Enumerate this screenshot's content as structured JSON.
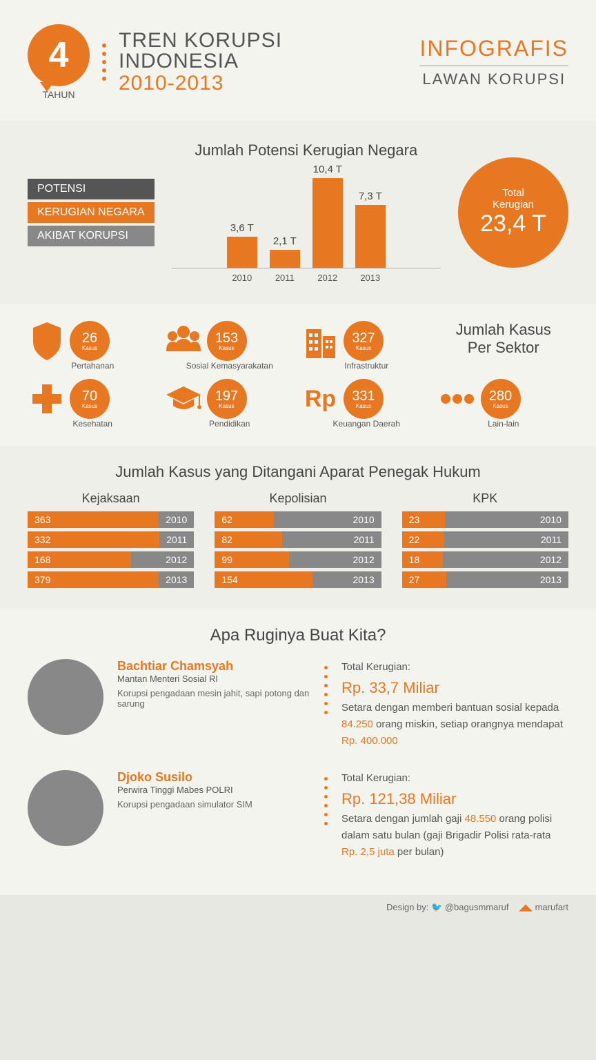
{
  "header": {
    "badge_number": "4",
    "badge_label": "TAHUN",
    "title_line1": "TREN KORUPSI",
    "title_line2": "INDONESIA",
    "title_years": "2010-2013",
    "right_line1": "INFOGRAFIS",
    "right_line2": "LAWAN KORUPSI"
  },
  "colors": {
    "orange": "#e87722",
    "dark_gray": "#555555",
    "gray": "#888888",
    "bg_light": "#f4f4ef",
    "bg_alt": "#efefe9"
  },
  "section1": {
    "label1": "POTENSI",
    "label2": "KERUGIAN NEGARA",
    "label3": "AKIBAT KORUPSI",
    "chart_title": "Jumlah Potensi Kerugian Negara",
    "bars": [
      {
        "year": "2010",
        "label": "3,6 T",
        "value": 3.6
      },
      {
        "year": "2011",
        "label": "2,1 T",
        "value": 2.1
      },
      {
        "year": "2012",
        "label": "10,4 T",
        "value": 10.4
      },
      {
        "year": "2013",
        "label": "7,3 T",
        "value": 7.3
      }
    ],
    "max_value": 10.4,
    "bar_max_height": 130,
    "total_label1": "Total",
    "total_label2": "Kerugian",
    "total_value": "23,4 T"
  },
  "section2": {
    "title": "Jumlah Kasus Per Sektor",
    "kasus_label": "Kasus",
    "sectors": [
      {
        "name": "Pertahanan",
        "value": "26",
        "icon": "shield"
      },
      {
        "name": "Sosial Kemasyarakatan",
        "value": "153",
        "icon": "people"
      },
      {
        "name": "Infrastruktur",
        "value": "327",
        "icon": "building"
      },
      {
        "name": "Kesehatan",
        "value": "70",
        "icon": "plus"
      },
      {
        "name": "Pendidikan",
        "value": "197",
        "icon": "grad"
      },
      {
        "name": "Keuangan Daerah",
        "value": "331",
        "icon": "rp"
      },
      {
        "name": "Lain-lain",
        "value": "280",
        "icon": "dots"
      }
    ]
  },
  "section3": {
    "title": "Jumlah Kasus yang Ditangani Aparat Penegak Hukum",
    "max_value": 400,
    "agencies": [
      {
        "name": "Kejaksaan",
        "rows": [
          {
            "year": "2010",
            "value": 363
          },
          {
            "year": "2011",
            "value": 332
          },
          {
            "year": "2012",
            "value": 168
          },
          {
            "year": "2013",
            "value": 379
          }
        ]
      },
      {
        "name": "Kepolisian",
        "rows": [
          {
            "year": "2010",
            "value": 62
          },
          {
            "year": "2011",
            "value": 82
          },
          {
            "year": "2012",
            "value": 99
          },
          {
            "year": "2013",
            "value": 154
          }
        ]
      },
      {
        "name": "KPK",
        "rows": [
          {
            "year": "2010",
            "value": 23
          },
          {
            "year": "2011",
            "value": 22
          },
          {
            "year": "2012",
            "value": 18
          },
          {
            "year": "2013",
            "value": 27
          }
        ]
      }
    ]
  },
  "section4": {
    "title": "Apa Ruginya Buat Kita?",
    "total_label": "Total Kerugian:",
    "people": [
      {
        "name": "Bachtiar Chamsyah",
        "role": "Mantan Menteri Sosial RI",
        "desc": "Korupsi pengadaan mesin jahit, sapi potong dan sarung",
        "amount": "Rp. 33,7 Miliar",
        "detail_pre": "Setara dengan memberi bantuan sosial kepada ",
        "detail_hl1": "84.250",
        "detail_mid": " orang miskin, setiap orangnya mendapat ",
        "detail_hl2": "Rp. 400.000"
      },
      {
        "name": "Djoko Susilo",
        "role": "Perwira Tinggi Mabes POLRI",
        "desc": "Korupsi pengadaan simulator SIM",
        "amount": "Rp. 121,38 Miliar",
        "detail_pre": "Setara dengan jumlah gaji ",
        "detail_hl1": "48.550",
        "detail_mid": " orang polisi dalam satu bulan (gaji Brigadir Polisi rata-rata ",
        "detail_hl2": "Rp. 2,5 juta",
        "detail_post": " per bulan)"
      }
    ]
  },
  "footer": {
    "design_by": "Design by:",
    "handle": "@bagusmmaruf",
    "brand": "marufart"
  }
}
